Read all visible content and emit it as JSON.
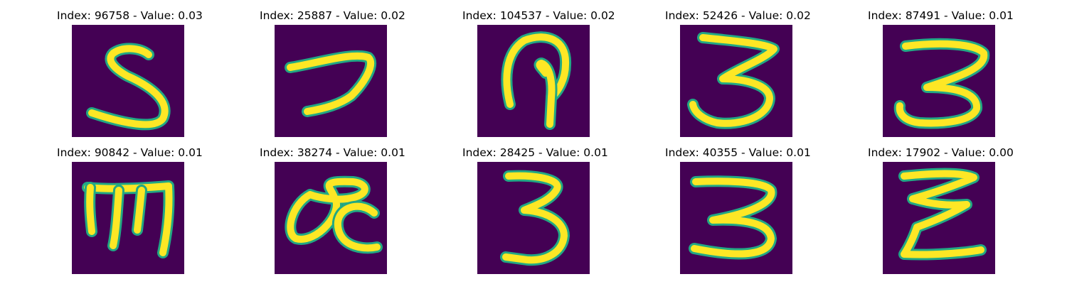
{
  "panels": [
    {
      "title": "Index: 96758 - Value: 0.03",
      "glyph": "5"
    },
    {
      "title": "Index: 25887 - Value: 0.02",
      "glyph": "7"
    },
    {
      "title": "Index: 104537 - Value: 0.02",
      "glyph": "a"
    },
    {
      "title": "Index: 52426 - Value: 0.02",
      "glyph": "3"
    },
    {
      "title": "Index: 87491 - Value: 0.01",
      "glyph": "3"
    },
    {
      "title": "Index: 90842 - Value: 0.01",
      "glyph": "m"
    },
    {
      "title": "Index: 38274 - Value: 0.01",
      "glyph": "oc"
    },
    {
      "title": "Index: 28425 - Value: 0.01",
      "glyph": "3"
    },
    {
      "title": "Index: 40355 - Value: 0.01",
      "glyph": "3"
    },
    {
      "title": "Index: 17902 - Value: 0.00",
      "glyph": "E"
    }
  ],
  "colors": {
    "background": "#440154",
    "stroke_edge": "#22a884",
    "stroke_core": "#fde725"
  }
}
